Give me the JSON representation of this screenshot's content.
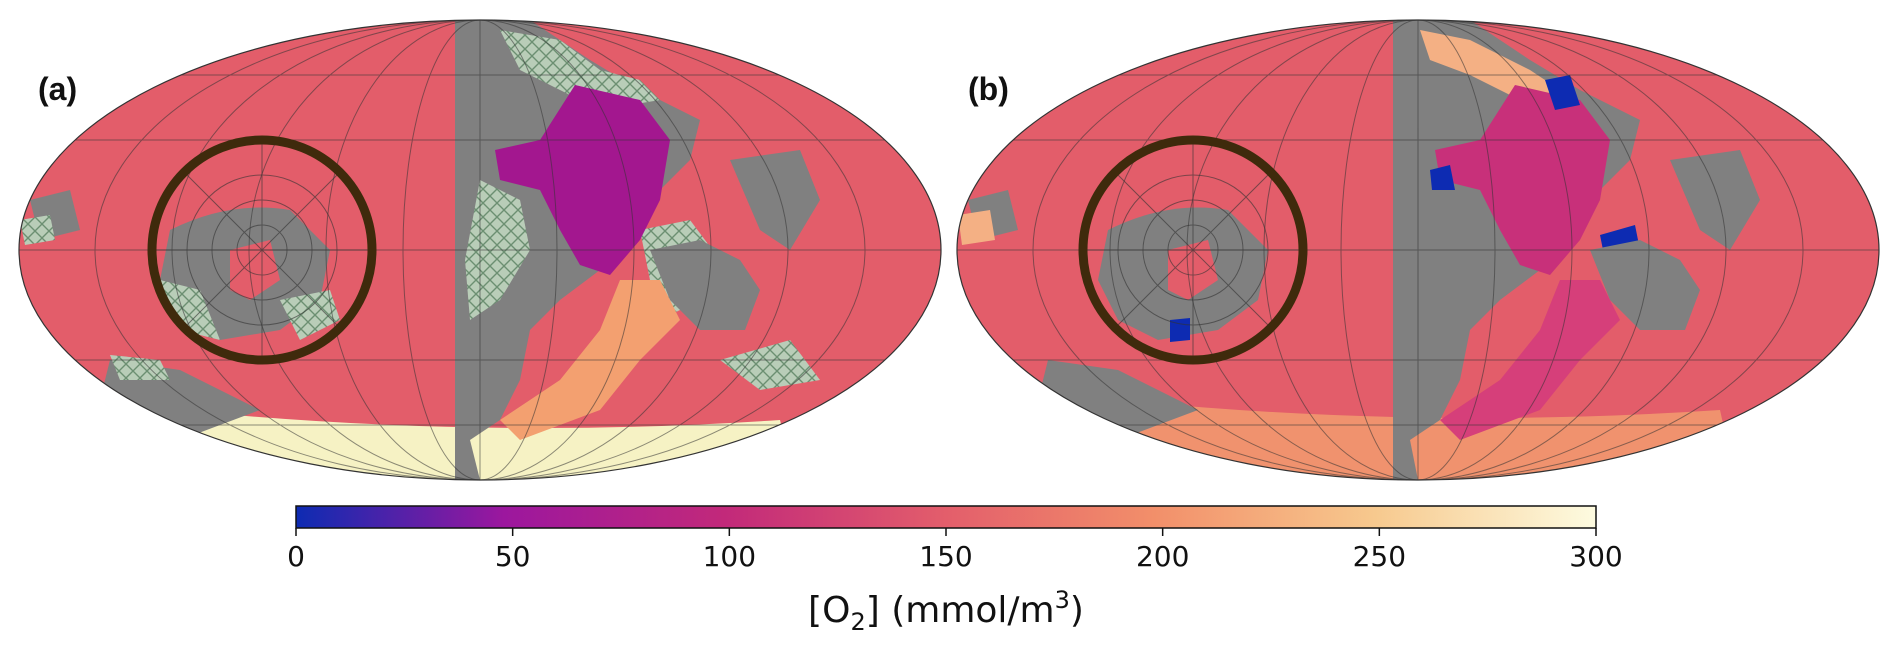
{
  "panels": [
    {
      "id": "a",
      "label": "(a)"
    },
    {
      "id": "b",
      "label": "(b)"
    }
  ],
  "colorbar": {
    "label_prefix": "[O",
    "label_sub": "2",
    "label_mid": "] (mmol/m",
    "label_sup": "3",
    "label_suffix": ")",
    "min": 0,
    "max": 300,
    "ticks": [
      "0",
      "50",
      "100",
      "150",
      "200",
      "250",
      "300"
    ],
    "colormap": [
      "#0d2bb2",
      "#9c179e",
      "#c2297a",
      "#e35e6b",
      "#f28f6a",
      "#f7c98e",
      "#fdfbe0"
    ]
  },
  "colors": {
    "land": "#808080",
    "ocean_main": "#e35d6a",
    "hatch_bg": "#b9cdb8",
    "hatch_line": "#6c8f72",
    "low_o2_basin": "#a3178f",
    "warm_plume": "#f3a070",
    "polar_band": "#f6f2c4",
    "anoxic": "#0d2bb2",
    "circle_stroke": "#3f2a0c",
    "grid": "#333333"
  }
}
